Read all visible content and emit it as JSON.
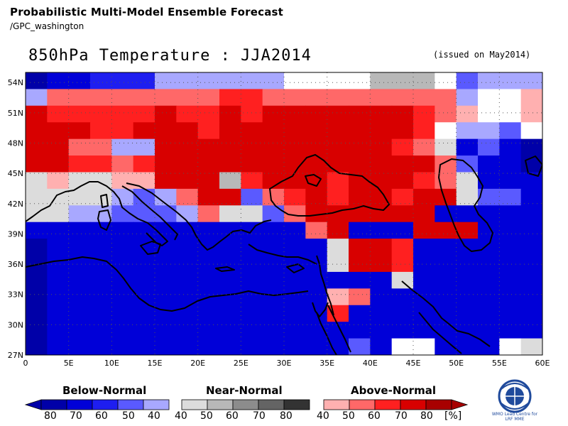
{
  "header": {
    "title": "Probabilistic Multi-Model Ensemble Forecast",
    "source": "/GPC_washington"
  },
  "map": {
    "title": "850hPa Temperature : JJA2014",
    "issued": "(issued on May2014)",
    "lat_labels": [
      "54N",
      "51N",
      "48N",
      "45N",
      "42N",
      "39N",
      "36N",
      "33N",
      "30N",
      "27N"
    ],
    "lon_labels": [
      "0",
      "5E",
      "10E",
      "15E",
      "20E",
      "25E",
      "30E",
      "35E",
      "40E",
      "45E",
      "50E",
      "55E",
      "60E"
    ],
    "grid_resolution_deg": 2.5,
    "lon_range": [
      0,
      60
    ],
    "lat_range": [
      27,
      55
    ],
    "grid_lines": "dotted",
    "coastlines": "drawn",
    "region": "Mediterranean, Black Sea, Middle East"
  },
  "legend": {
    "categories": [
      {
        "name": "Below-Normal",
        "labels": [
          "80",
          "70",
          "60",
          "50",
          "40"
        ],
        "colors": [
          "#0000a8",
          "#0000d8",
          "#1e1ef0",
          "#5a5aff",
          "#a8a8ff"
        ]
      },
      {
        "name": "Near-Normal",
        "labels": [
          "40",
          "50",
          "60",
          "70",
          "80"
        ],
        "colors": [
          "#dcdcdc",
          "#b8b8b8",
          "#8c8c8c",
          "#646464",
          "#333333"
        ]
      },
      {
        "name": "Above-Normal",
        "labels": [
          "40",
          "50",
          "60",
          "70",
          "80"
        ],
        "colors": [
          "#ffb0b0",
          "#ff6868",
          "#ff2020",
          "#d80000",
          "#a80000"
        ]
      }
    ],
    "unit": "[%]"
  },
  "logo": {
    "text_line1": "WMO Lead Centre for",
    "text_line2": "LRF MME"
  }
}
